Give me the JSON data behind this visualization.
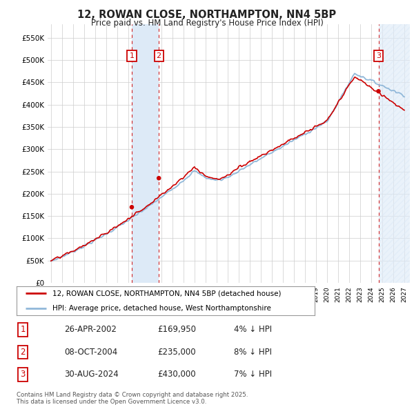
{
  "title": "12, ROWAN CLOSE, NORTHAMPTON, NN4 5BP",
  "subtitle": "Price paid vs. HM Land Registry's House Price Index (HPI)",
  "ylabel_ticks": [
    "£0",
    "£50K",
    "£100K",
    "£150K",
    "£200K",
    "£250K",
    "£300K",
    "£350K",
    "£400K",
    "£450K",
    "£500K",
    "£550K"
  ],
  "ytick_values": [
    0,
    50000,
    100000,
    150000,
    200000,
    250000,
    300000,
    350000,
    400000,
    450000,
    500000,
    550000
  ],
  "ylim": [
    0,
    580000
  ],
  "xlim_start": 1994.7,
  "xlim_end": 2027.5,
  "sale_dates": [
    2002.32,
    2004.77,
    2024.66
  ],
  "sale_prices": [
    169950,
    235000,
    430000
  ],
  "sale_labels": [
    "1",
    "2",
    "3"
  ],
  "legend_entries": [
    "12, ROWAN CLOSE, NORTHAMPTON, NN4 5BP (detached house)",
    "HPI: Average price, detached house, West Northamptonshire"
  ],
  "table_rows": [
    [
      "1",
      "26-APR-2002",
      "£169,950",
      "4% ↓ HPI"
    ],
    [
      "2",
      "08-OCT-2004",
      "£235,000",
      "8% ↓ HPI"
    ],
    [
      "3",
      "30-AUG-2024",
      "£430,000",
      "7% ↓ HPI"
    ]
  ],
  "footer": "Contains HM Land Registry data © Crown copyright and database right 2025.\nThis data is licensed under the Open Government Licence v3.0.",
  "hpi_color": "#91b8d9",
  "price_color": "#cc0000",
  "shade_color": "#ddeaf7",
  "hatch_color": "#ddeaf7",
  "vline_color": "#cc0000",
  "background_color": "#ffffff",
  "grid_color": "#cccccc",
  "label_box_color": "#cc0000"
}
